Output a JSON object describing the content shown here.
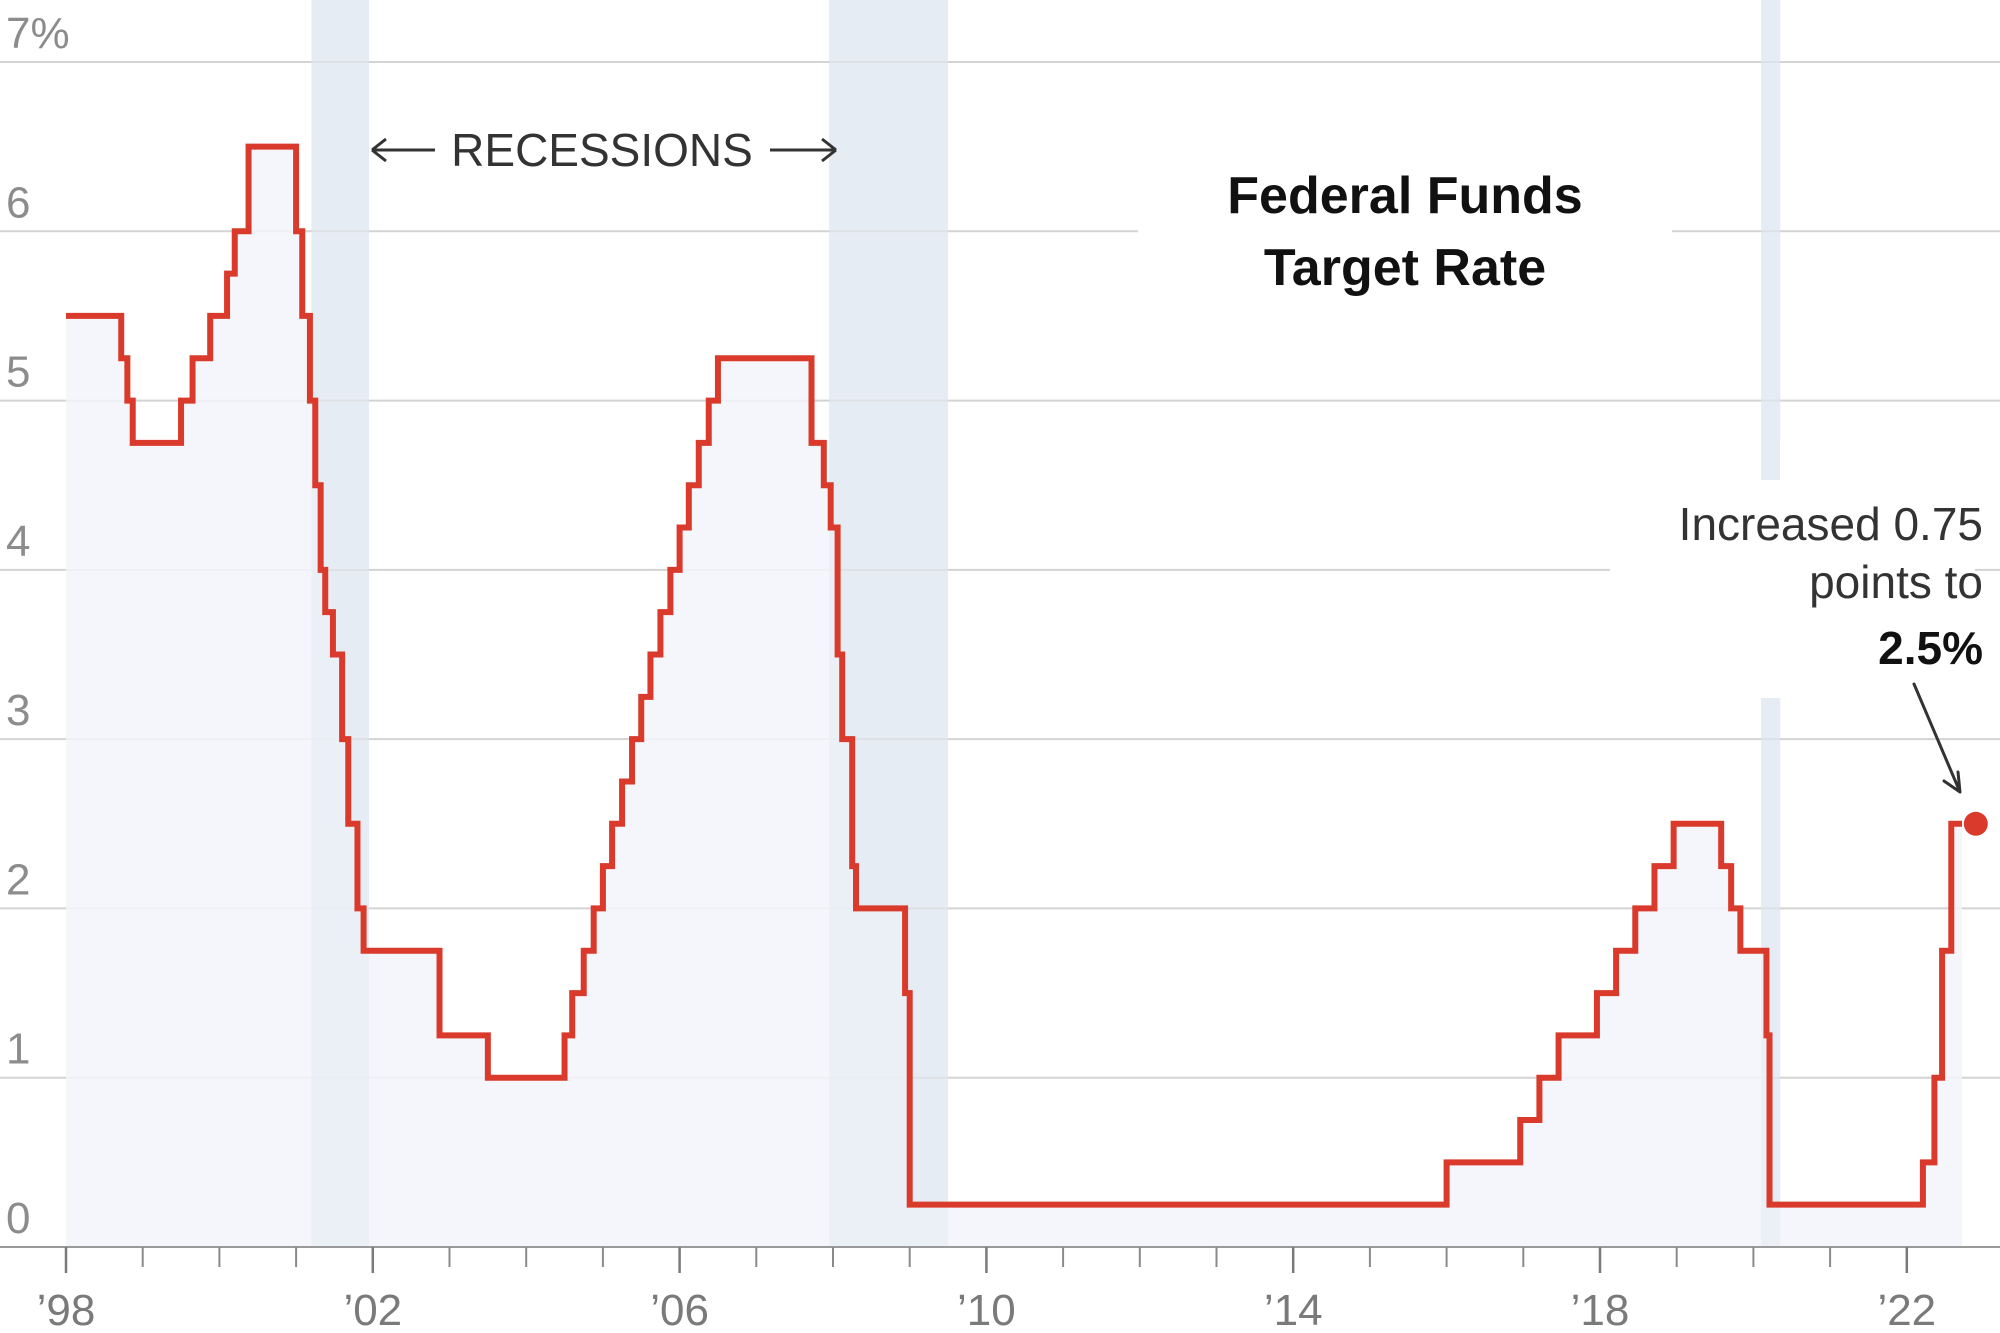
{
  "chart_data": {
    "type": "area",
    "title_lines": [
      "Federal Funds",
      "Target Rate"
    ],
    "xlabel": "",
    "ylabel": "",
    "xlim": [
      1998.0,
      2022.95
    ],
    "ylim": [
      0,
      7
    ],
    "y_ticks": [
      0,
      1,
      2,
      3,
      4,
      5,
      6,
      7
    ],
    "y_tick_labels": [
      "0",
      "1",
      "2",
      "3",
      "4",
      "5",
      "6",
      "7%"
    ],
    "x_major_ticks": [
      1998,
      2002,
      2006,
      2010,
      2014,
      2018,
      2022
    ],
    "x_tick_labels": [
      "’98",
      "’02",
      "’06",
      "’10",
      "’14",
      "’18",
      "’22"
    ],
    "x_minor_ticks": [
      1999,
      2000,
      2001,
      2003,
      2004,
      2005,
      2007,
      2008,
      2009,
      2011,
      2012,
      2013,
      2015,
      2016,
      2017,
      2019,
      2020,
      2021
    ],
    "grid": true,
    "recessions": [
      {
        "start": 2001.2,
        "end": 2001.95
      },
      {
        "start": 2007.95,
        "end": 2009.5
      },
      {
        "start": 2020.1,
        "end": 2020.35
      }
    ],
    "recession_label": "RECESSIONS",
    "series": [
      {
        "step": "post",
        "color": "#d93a2b",
        "x": [
          1998.0,
          1998.72,
          1998.8,
          1998.87,
          1999.5,
          1999.65,
          1999.88,
          2000.1,
          2000.2,
          2000.38,
          2001.0,
          2001.08,
          2001.18,
          2001.25,
          2001.32,
          2001.38,
          2001.48,
          2001.6,
          2001.68,
          2001.72,
          2001.8,
          2001.88,
          2001.95,
          2002.87,
          2003.5,
          2004.5,
          2004.6,
          2004.75,
          2004.88,
          2005.0,
          2005.12,
          2005.25,
          2005.38,
          2005.5,
          2005.62,
          2005.75,
          2005.88,
          2006.0,
          2006.12,
          2006.25,
          2006.38,
          2006.5,
          2007.72,
          2007.88,
          2007.97,
          2008.06,
          2008.12,
          2008.25,
          2008.3,
          2008.5,
          2008.94,
          2009.0,
          2016.0,
          2016.96,
          2017.21,
          2017.46,
          2017.96,
          2018.21,
          2018.46,
          2018.71,
          2018.96,
          2019.58,
          2019.71,
          2019.83,
          2020.17,
          2020.21,
          2022.21,
          2022.36,
          2022.46,
          2022.58,
          2022.72
        ],
        "values": [
          5.5,
          5.25,
          5.0,
          4.75,
          5.0,
          5.25,
          5.5,
          5.75,
          6.0,
          6.5,
          6.0,
          5.5,
          5.0,
          4.5,
          4.0,
          3.75,
          3.5,
          3.0,
          2.5,
          2.5,
          2.0,
          1.75,
          1.75,
          1.25,
          1.0,
          1.25,
          1.5,
          1.75,
          2.0,
          2.25,
          2.5,
          2.75,
          3.0,
          3.25,
          3.5,
          3.75,
          4.0,
          4.25,
          4.5,
          4.75,
          5.0,
          5.25,
          4.75,
          4.5,
          4.25,
          3.5,
          3.0,
          2.25,
          2.0,
          2.0,
          1.5,
          0.25,
          0.5,
          0.75,
          1.0,
          1.25,
          1.5,
          1.75,
          2.0,
          2.25,
          2.5,
          2.25,
          2.0,
          1.75,
          1.25,
          0.25,
          0.5,
          1.0,
          1.75,
          2.5,
          2.5
        ]
      }
    ],
    "highlight_point": {
      "x": 2022.6,
      "y": 2.5
    },
    "annotation": {
      "lines": [
        "Increased 0.75",
        "points to"
      ],
      "bold": "2.5%"
    },
    "colors": {
      "line": "#d93a2b",
      "area_fill": "#f2f5fa",
      "recession_band": "#e6ecf4",
      "text": "#333333"
    }
  }
}
